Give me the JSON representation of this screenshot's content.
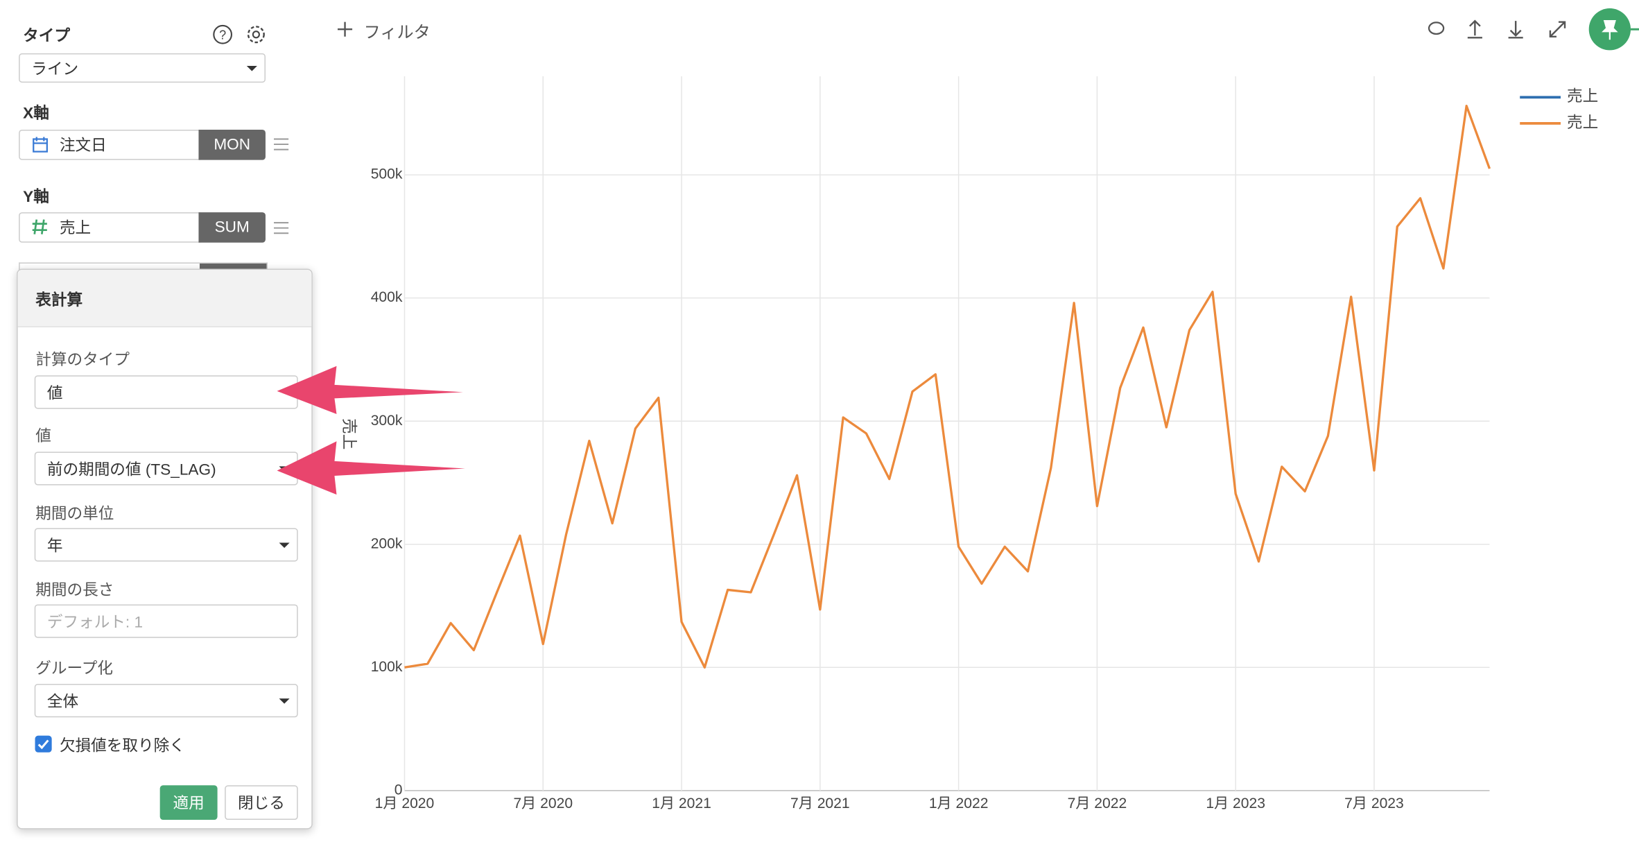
{
  "panel": {
    "type_label": "タイプ",
    "type_value": "ライン",
    "x_axis_label": "X軸",
    "x_field": "注文日",
    "x_agg": "MON",
    "y_axis_label": "Y軸",
    "y_field": "売上",
    "y_agg": "SUM"
  },
  "table_calc": {
    "title": "表計算",
    "calc_type_label": "計算のタイプ",
    "calc_type_value": "値",
    "value_label": "値",
    "value_value": "前の期間の値 (TS_LAG)",
    "unit_label": "期間の単位",
    "unit_value": "年",
    "length_label": "期間の長さ",
    "length_placeholder": "デフォルト: 1",
    "group_label": "グループ化",
    "group_value": "全体",
    "remove_missing": "欠損値を取り除く",
    "apply": "適用",
    "close": "閉じる"
  },
  "toolbar": {
    "filter": "フィルタ"
  },
  "chart_data": {
    "type": "line",
    "ylabel": "売上",
    "x": [
      "2020-01",
      "2020-02",
      "2020-03",
      "2020-04",
      "2020-05",
      "2020-06",
      "2020-07",
      "2020-08",
      "2020-09",
      "2020-10",
      "2020-11",
      "2020-12",
      "2021-01",
      "2021-02",
      "2021-03",
      "2021-04",
      "2021-05",
      "2021-06",
      "2021-07",
      "2021-08",
      "2021-09",
      "2021-10",
      "2021-11",
      "2021-12",
      "2022-01",
      "2022-02",
      "2022-03",
      "2022-04",
      "2022-05",
      "2022-06",
      "2022-07",
      "2022-08",
      "2022-09",
      "2022-10",
      "2022-11",
      "2022-12",
      "2023-01",
      "2023-02",
      "2023-03",
      "2023-04",
      "2023-05",
      "2023-06",
      "2023-07",
      "2023-08",
      "2023-09",
      "2023-10",
      "2023-11",
      "2023-12"
    ],
    "series": [
      {
        "name": "売上",
        "color": "#2f6fb0",
        "values": [
          null,
          null,
          null,
          null,
          null,
          null,
          null,
          null,
          null,
          null,
          null,
          null,
          null,
          null,
          null,
          null,
          null,
          null,
          null,
          null,
          null,
          null,
          null,
          null,
          null,
          null,
          null,
          null,
          null,
          null,
          null,
          null,
          null,
          null,
          null,
          null,
          null,
          null,
          null,
          null,
          null,
          null,
          null,
          null,
          null,
          null,
          null,
          null
        ]
      },
      {
        "name": "売上",
        "color": "#ec8a3c",
        "values": [
          100000,
          103000,
          136000,
          114000,
          161000,
          207000,
          119000,
          208000,
          284000,
          217000,
          294000,
          319000,
          137000,
          100000,
          163000,
          161000,
          208000,
          256000,
          147000,
          303000,
          290000,
          253000,
          324000,
          338000,
          198000,
          168000,
          198000,
          178000,
          262000,
          396000,
          231000,
          327000,
          376000,
          295000,
          374000,
          405000,
          241000,
          186000,
          263000,
          243000,
          288000,
          401000,
          260000,
          458000,
          481000,
          424000,
          556000,
          505000
        ]
      }
    ],
    "xlim": [
      "2020-01",
      "2023-12"
    ],
    "xticks": [
      {
        "value": "2020-01",
        "label": "1月 2020"
      },
      {
        "value": "2020-07",
        "label": "7月 2020"
      },
      {
        "value": "2021-01",
        "label": "1月 2021"
      },
      {
        "value": "2021-07",
        "label": "7月 2021"
      },
      {
        "value": "2022-01",
        "label": "1月 2022"
      },
      {
        "value": "2022-07",
        "label": "7月 2022"
      },
      {
        "value": "2023-01",
        "label": "1月 2023"
      },
      {
        "value": "2023-07",
        "label": "7月 2023"
      }
    ],
    "ylim": [
      0,
      580000
    ],
    "yticks": [
      0,
      {
        "value": 100000,
        "label": "100k"
      },
      {
        "value": 200000,
        "label": "200k"
      },
      {
        "value": 300000,
        "label": "300k"
      },
      {
        "value": 400000,
        "label": "400k"
      },
      {
        "value": 500000,
        "label": "500k"
      }
    ],
    "grid": true
  }
}
